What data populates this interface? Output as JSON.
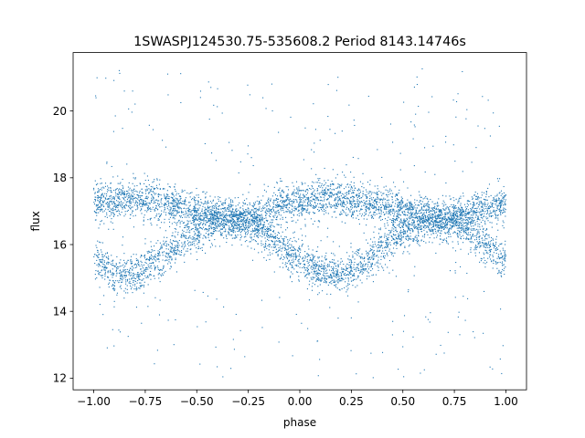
{
  "chart_data": {
    "type": "scatter",
    "title": "1SWASPJ124530.75-535608.2 Period 8143.14746s",
    "xlabel": "phase",
    "ylabel": "flux",
    "xlim": [
      -1.1,
      1.1
    ],
    "ylim": [
      11.65,
      21.75
    ],
    "x_ticks": [
      -1.0,
      -0.75,
      -0.5,
      -0.25,
      0.0,
      0.25,
      0.5,
      0.75,
      1.0
    ],
    "x_tick_labels": [
      "−1.00",
      "−0.75",
      "−0.50",
      "−0.25",
      "0.00",
      "0.25",
      "0.50",
      "0.75",
      "1.00"
    ],
    "y_ticks": [
      12,
      14,
      16,
      18,
      20
    ],
    "y_tick_labels": [
      "12",
      "14",
      "16",
      "18",
      "20"
    ],
    "grid": false,
    "marker_color": "#1f77b4",
    "series": [
      {
        "phase_range": [
          -1.0,
          1.0
        ],
        "upper_branch_flux": [
          [
            -1.0,
            17.25
          ],
          [
            -0.9,
            17.35
          ],
          [
            -0.8,
            17.35
          ],
          [
            -0.7,
            17.3
          ],
          [
            -0.6,
            17.15
          ],
          [
            -0.5,
            17.0
          ],
          [
            -0.4,
            16.9
          ],
          [
            -0.3,
            16.7
          ],
          [
            -0.2,
            16.9
          ],
          [
            -0.1,
            17.2
          ],
          [
            0.0,
            17.3
          ],
          [
            0.1,
            17.4
          ],
          [
            0.2,
            17.35
          ],
          [
            0.3,
            17.3
          ],
          [
            0.4,
            17.2
          ],
          [
            0.5,
            17.0
          ],
          [
            0.6,
            16.85
          ],
          [
            0.7,
            16.75
          ],
          [
            0.8,
            16.95
          ],
          [
            0.9,
            17.1
          ],
          [
            1.0,
            17.2
          ]
        ],
        "lower_branch_flux": [
          [
            -1.0,
            15.5
          ],
          [
            -0.9,
            15.2
          ],
          [
            -0.8,
            15.1
          ],
          [
            -0.7,
            15.5
          ],
          [
            -0.6,
            16.0
          ],
          [
            -0.5,
            16.4
          ],
          [
            -0.4,
            16.65
          ],
          [
            -0.3,
            16.7
          ],
          [
            -0.2,
            16.5
          ],
          [
            -0.1,
            16.0
          ],
          [
            0.0,
            15.5
          ],
          [
            0.1,
            15.15
          ],
          [
            0.2,
            15.1
          ],
          [
            0.3,
            15.4
          ],
          [
            0.4,
            15.9
          ],
          [
            0.5,
            16.35
          ],
          [
            0.6,
            16.65
          ],
          [
            0.7,
            16.75
          ],
          [
            0.8,
            16.5
          ],
          [
            0.9,
            16.0
          ],
          [
            1.0,
            15.5
          ]
        ],
        "branch_scatter": 0.28,
        "outlier_flux_range": [
          12.0,
          21.3
        ]
      }
    ]
  }
}
